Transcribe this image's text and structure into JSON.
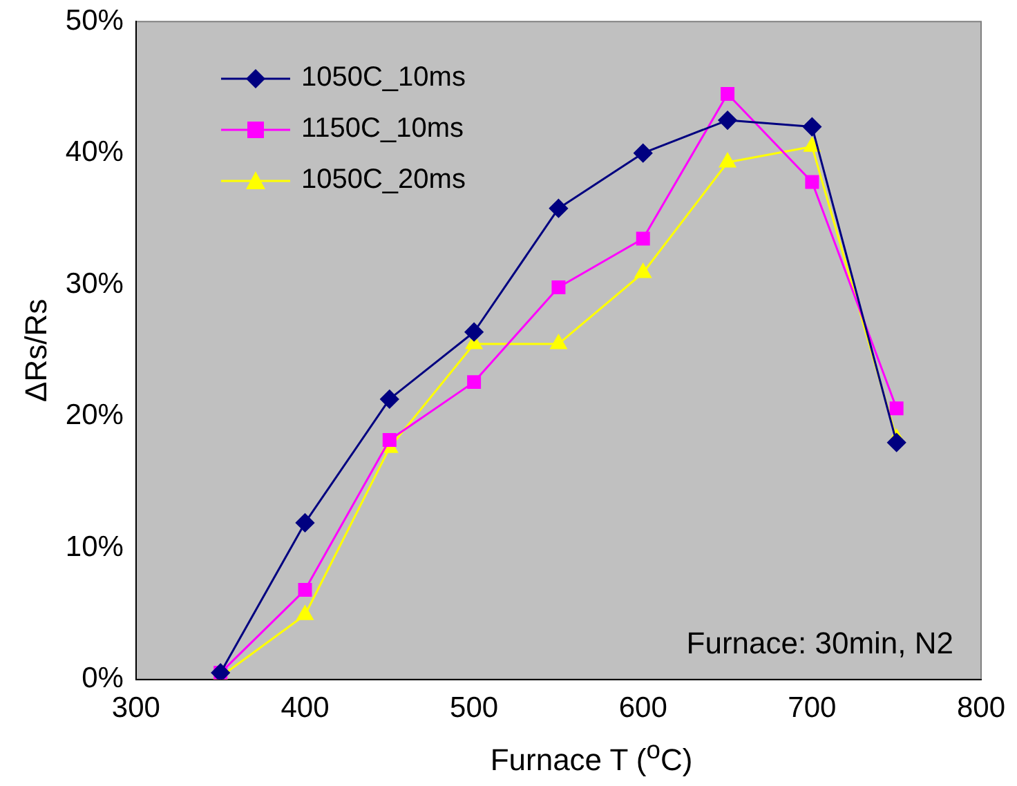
{
  "chart_data": {
    "type": "line",
    "xlabel": "Furnace T ($^{o}$C)",
    "ylabel": "ΔRs/Rs",
    "x": [
      350,
      400,
      450,
      500,
      550,
      600,
      650,
      700,
      750
    ],
    "series": [
      {
        "name": "1050C_10ms",
        "color": "#000080",
        "marker": "diamond",
        "values": [
          0.5,
          11.9,
          21.3,
          26.4,
          35.8,
          40,
          42.5,
          42,
          18
        ]
      },
      {
        "name": "1150C_10ms",
        "color": "#ff00ff",
        "marker": "square",
        "values": [
          0.5,
          6.8,
          18.2,
          22.6,
          29.8,
          33.5,
          44.5,
          37.8,
          20.6
        ]
      },
      {
        "name": "1050C_20ms",
        "color": "#ffff00",
        "marker": "triangle",
        "values": [
          0.2,
          4.9,
          17.6,
          25.5,
          25.5,
          30.9,
          39.3,
          40.5,
          18.3
        ]
      }
    ],
    "xlim": [
      300,
      800
    ],
    "xticks": [
      300,
      400,
      500,
      600,
      700,
      800
    ],
    "ylim": [
      0,
      50
    ],
    "yticks": [
      {
        "value": 0,
        "label": "0%"
      },
      {
        "value": 10,
        "label": "10%"
      },
      {
        "value": 20,
        "label": "20%"
      },
      {
        "value": 30,
        "label": "30%"
      },
      {
        "value": 40,
        "label": "40%"
      },
      {
        "value": 50,
        "label": "50%"
      }
    ],
    "grid": false,
    "legend": "top left",
    "line_style": "solid",
    "annotations": [
      "Furnace: 30min, N2"
    ]
  }
}
